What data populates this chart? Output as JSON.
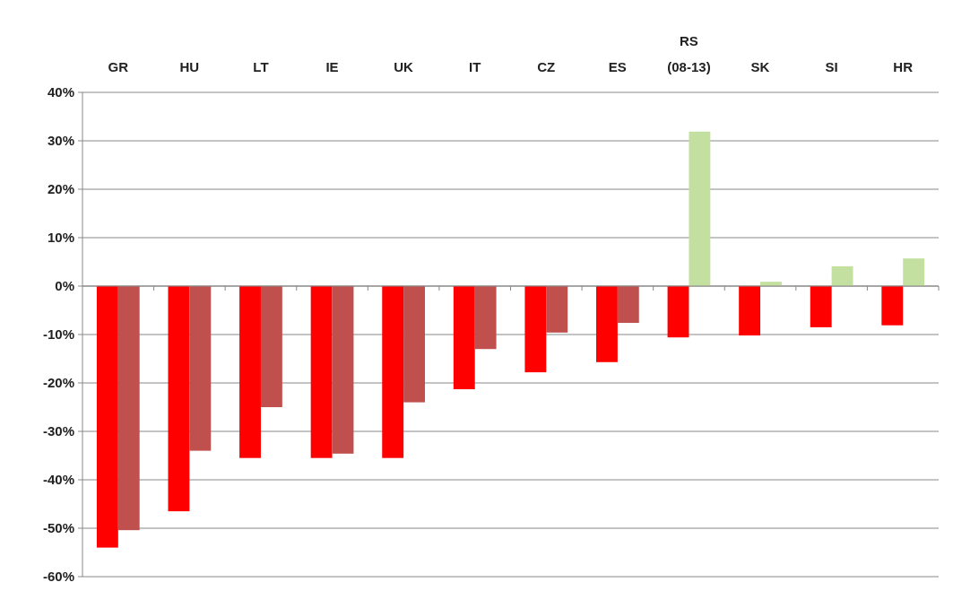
{
  "chart_data": {
    "type": "bar",
    "categories": [
      "GR",
      "HU",
      "LT",
      "IE",
      "UK",
      "IT",
      "CZ",
      "ES",
      "RS (08-13)",
      "SK",
      "SI",
      "HR"
    ],
    "series": [
      {
        "color": "#ff0000",
        "values": [
          -54,
          -46.5,
          -35.5,
          -35.5,
          -35.5,
          -21.3,
          -17.8,
          -15.7,
          -10.6,
          -10.2,
          -8.5,
          -8.1
        ]
      },
      {
        "colors": [
          "#c0504d",
          "#c0504d",
          "#c0504d",
          "#c0504d",
          "#c0504d",
          "#c0504d",
          "#c0504d",
          "#c0504d",
          "#c3e0a0",
          "#c3e0a0",
          "#c3e0a0",
          "#c3e0a0"
        ],
        "values": [
          -50.4,
          -34,
          -25,
          -34.6,
          -24,
          -13,
          -9.6,
          -7.6,
          31.9,
          0.9,
          4.1,
          5.7
        ]
      }
    ],
    "ylim": [
      -60,
      40
    ],
    "yticks": [
      {
        "value": -60,
        "label": "-60%"
      },
      {
        "value": -50,
        "label": "-50%"
      },
      {
        "value": -40,
        "label": "-40%"
      },
      {
        "value": -30,
        "label": "-30%"
      },
      {
        "value": -20,
        "label": "-20%"
      },
      {
        "value": -10,
        "label": "-10%"
      },
      {
        "value": 0,
        "label": "0%"
      },
      {
        "value": 10,
        "label": "10%"
      },
      {
        "value": 20,
        "label": "20%"
      },
      {
        "value": 30,
        "label": "30%"
      },
      {
        "value": 40,
        "label": "40%"
      }
    ],
    "grid": "y"
  }
}
